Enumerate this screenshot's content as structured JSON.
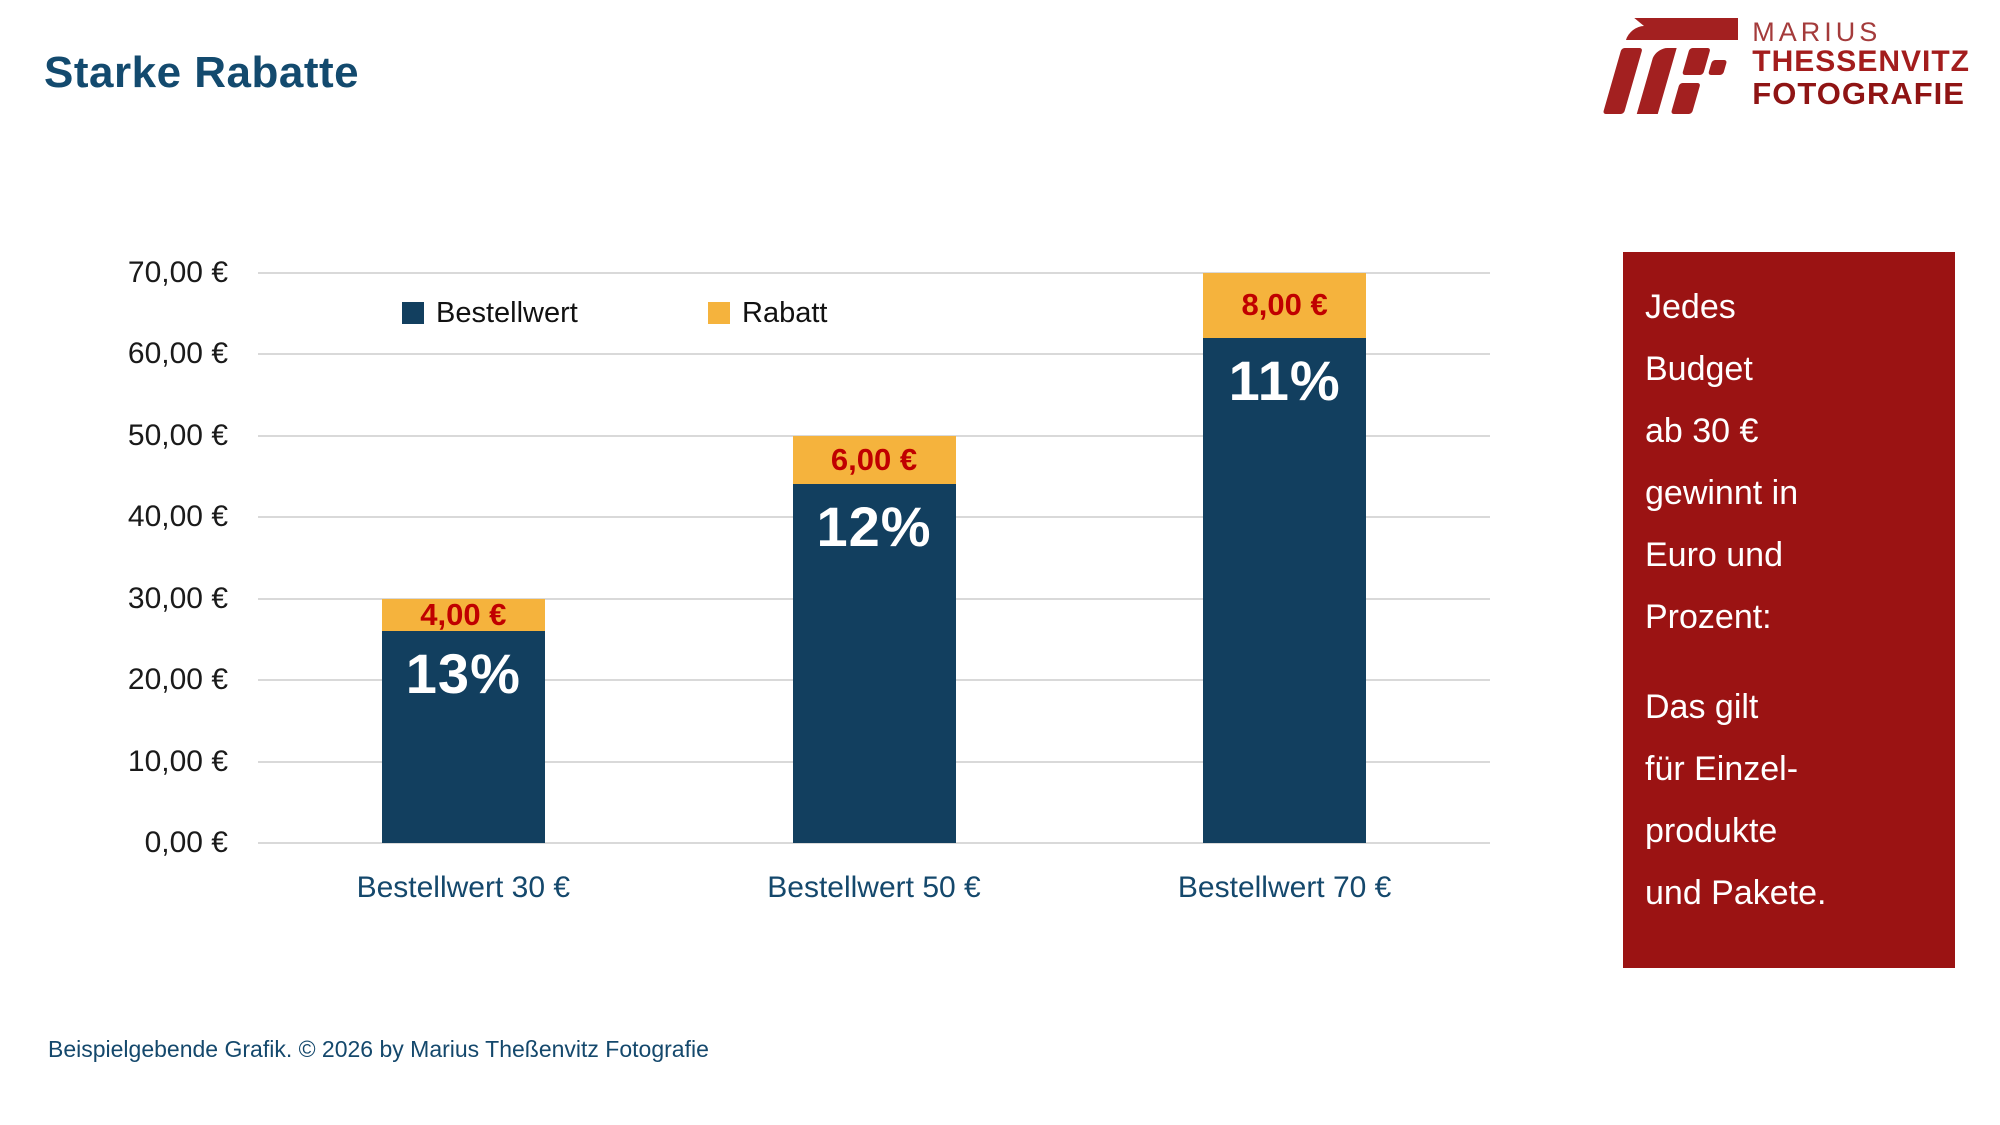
{
  "header": {
    "title": "Starke Rabatte"
  },
  "logo": {
    "line1": "MARIUS",
    "line2": "THESSENVITZ",
    "line3": "FOTOGRAFIE",
    "mark_color": "#A32020"
  },
  "chart_data": {
    "type": "bar",
    "stacked": true,
    "title": "",
    "xlabel": "",
    "ylabel": "",
    "categories": [
      "Bestellwert 30 €",
      "Bestellwert 50 €",
      "Bestellwert 70 €"
    ],
    "series": [
      {
        "name": "Bestellwert",
        "color": "#123F5F",
        "values": [
          26,
          44,
          62
        ]
      },
      {
        "name": "Rabatt",
        "color": "#F5B33D",
        "values": [
          4,
          6,
          8
        ]
      }
    ],
    "totals": [
      30,
      50,
      70
    ],
    "bar_labels": {
      "percent": [
        "13%",
        "12%",
        "11%"
      ],
      "rabatt_values": [
        "4,00 €",
        "6,00 €",
        "8,00 €"
      ]
    },
    "y_axis": {
      "min": 0,
      "max": 70,
      "step": 10,
      "tick_labels": [
        "0,00 €",
        "10,00 €",
        "20,00 €",
        "30,00 €",
        "40,00 €",
        "50,00 €",
        "60,00 €",
        "70,00 €"
      ]
    },
    "legend": [
      {
        "label": "Bestellwert",
        "color": "#123F5F"
      },
      {
        "label": "Rabatt",
        "color": "#F5B33D"
      }
    ],
    "legend_position": "top-left-inside",
    "grid": true,
    "grid_color": "#D9D9D9",
    "percent_label_color": "#FFFFFF",
    "rabatt_label_color": "#C00000"
  },
  "sidebox": {
    "background": "#9B1313",
    "paragraph1": "Jedes Budget ab 30 € gewinnt in Euro und Prozent:",
    "paragraph1_lines": [
      "Jedes",
      "Budget",
      "ab 30 €",
      "gewinnt in",
      "Euro und",
      "Prozent:"
    ],
    "paragraph2": "Das gilt für Einzel-produkte und Pakete.",
    "paragraph2_lines": [
      "Das gilt",
      "für Einzel-",
      "produkte",
      "und Pakete."
    ]
  },
  "footer": {
    "text": "Beispielgebende Grafik. © 2026 by Marius Theßenvitz Fotografie"
  }
}
